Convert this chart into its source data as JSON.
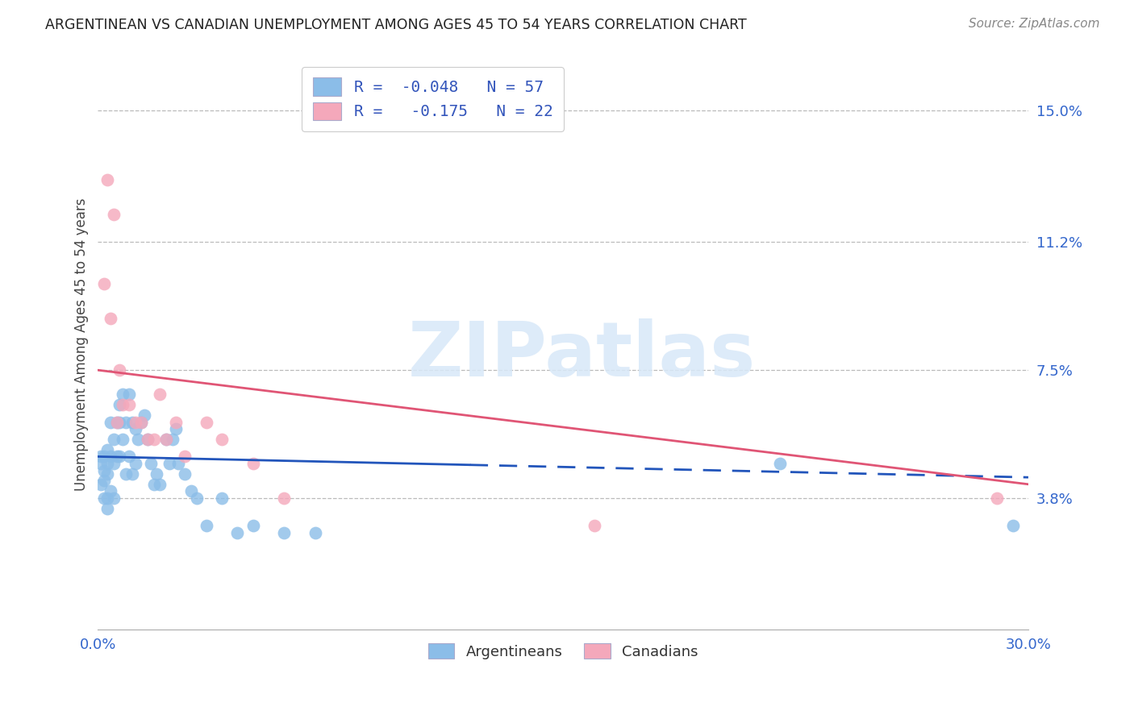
{
  "title": "ARGENTINEAN VS CANADIAN UNEMPLOYMENT AMONG AGES 45 TO 54 YEARS CORRELATION CHART",
  "source": "Source: ZipAtlas.com",
  "ylabel_label": "Unemployment Among Ages 45 to 54 years",
  "xlim": [
    0.0,
    0.3
  ],
  "ylim": [
    0.0,
    0.165
  ],
  "ytick_vals": [
    0.038,
    0.075,
    0.112,
    0.15
  ],
  "ytick_labels": [
    "3.8%",
    "7.5%",
    "11.2%",
    "15.0%"
  ],
  "xtick_vals": [
    0.0,
    0.3
  ],
  "xtick_labels": [
    "0.0%",
    "30.0%"
  ],
  "watermark": "ZIPatlas",
  "blue_color": "#8BBDE8",
  "pink_color": "#F4A8BB",
  "blue_line_color": "#2255BB",
  "pink_line_color": "#E05575",
  "legend_label1": "R =  -0.048   N = 57",
  "legend_label2": "R =   -0.175   N = 22",
  "legend_xlabel1": "Argentineans",
  "legend_xlabel2": "Canadians",
  "arg_x": [
    0.001,
    0.001,
    0.001,
    0.002,
    0.002,
    0.002,
    0.002,
    0.003,
    0.003,
    0.003,
    0.003,
    0.003,
    0.004,
    0.004,
    0.004,
    0.005,
    0.005,
    0.005,
    0.006,
    0.006,
    0.007,
    0.007,
    0.007,
    0.008,
    0.008,
    0.009,
    0.009,
    0.01,
    0.01,
    0.011,
    0.011,
    0.012,
    0.012,
    0.013,
    0.014,
    0.015,
    0.016,
    0.017,
    0.018,
    0.019,
    0.02,
    0.022,
    0.023,
    0.024,
    0.025,
    0.026,
    0.028,
    0.03,
    0.032,
    0.035,
    0.04,
    0.045,
    0.05,
    0.06,
    0.07,
    0.22,
    0.295
  ],
  "arg_y": [
    0.05,
    0.048,
    0.042,
    0.05,
    0.046,
    0.043,
    0.038,
    0.052,
    0.048,
    0.045,
    0.038,
    0.035,
    0.06,
    0.05,
    0.04,
    0.055,
    0.048,
    0.038,
    0.06,
    0.05,
    0.065,
    0.06,
    0.05,
    0.068,
    0.055,
    0.06,
    0.045,
    0.068,
    0.05,
    0.06,
    0.045,
    0.058,
    0.048,
    0.055,
    0.06,
    0.062,
    0.055,
    0.048,
    0.042,
    0.045,
    0.042,
    0.055,
    0.048,
    0.055,
    0.058,
    0.048,
    0.045,
    0.04,
    0.038,
    0.03,
    0.038,
    0.028,
    0.03,
    0.028,
    0.028,
    0.048,
    0.03
  ],
  "can_x": [
    0.002,
    0.003,
    0.004,
    0.005,
    0.006,
    0.007,
    0.008,
    0.01,
    0.012,
    0.014,
    0.016,
    0.018,
    0.02,
    0.022,
    0.025,
    0.028,
    0.035,
    0.04,
    0.05,
    0.06,
    0.16,
    0.29
  ],
  "can_y": [
    0.1,
    0.13,
    0.09,
    0.12,
    0.06,
    0.075,
    0.065,
    0.065,
    0.06,
    0.06,
    0.055,
    0.055,
    0.068,
    0.055,
    0.06,
    0.05,
    0.06,
    0.055,
    0.048,
    0.038,
    0.03,
    0.038
  ]
}
